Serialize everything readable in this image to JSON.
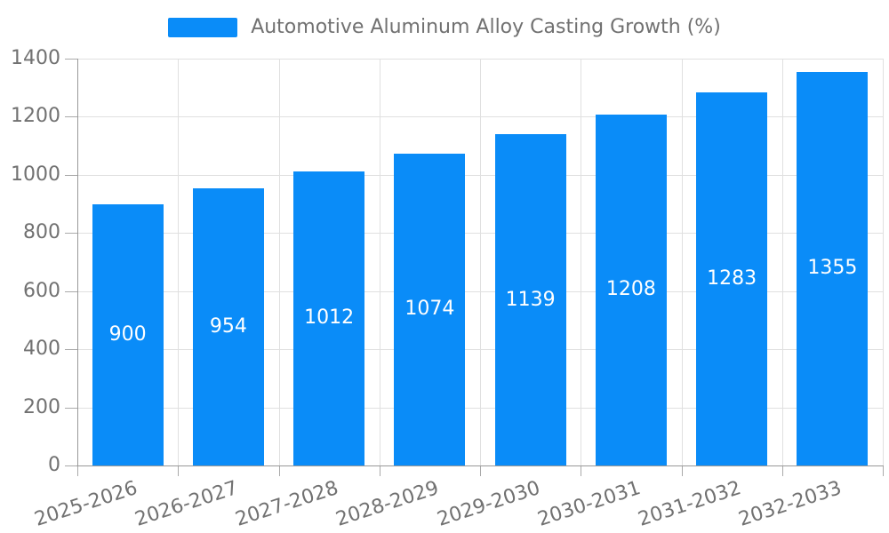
{
  "chart_data": {
    "type": "bar",
    "title": "Automotive Aluminum Alloy Casting Growth (%)",
    "categories": [
      "2025-2026",
      "2026-2027",
      "2027-2028",
      "2028-2029",
      "2029-2030",
      "2030-2031",
      "2031-2032",
      "2032-2033"
    ],
    "values": [
      900,
      954,
      1012,
      1074,
      1139,
      1208,
      1283,
      1355
    ],
    "xlabel": "",
    "ylabel": "",
    "ylim": [
      0,
      1400
    ],
    "y_ticks": [
      0,
      200,
      400,
      600,
      800,
      1000,
      1200,
      1400
    ],
    "grid": true,
    "legend_position": "top-center",
    "x_label_rotation_deg": -18,
    "bar_labels_inside": true,
    "colors": {
      "bar": "#0a8cf8",
      "bar_value_label": "#ffffff",
      "axis_text": "#717171",
      "legend_text": "#717171",
      "grid_line": "#e0e0e0",
      "axis_line": "#999999",
      "tick": "#aaaaaa",
      "background": "#ffffff"
    }
  }
}
